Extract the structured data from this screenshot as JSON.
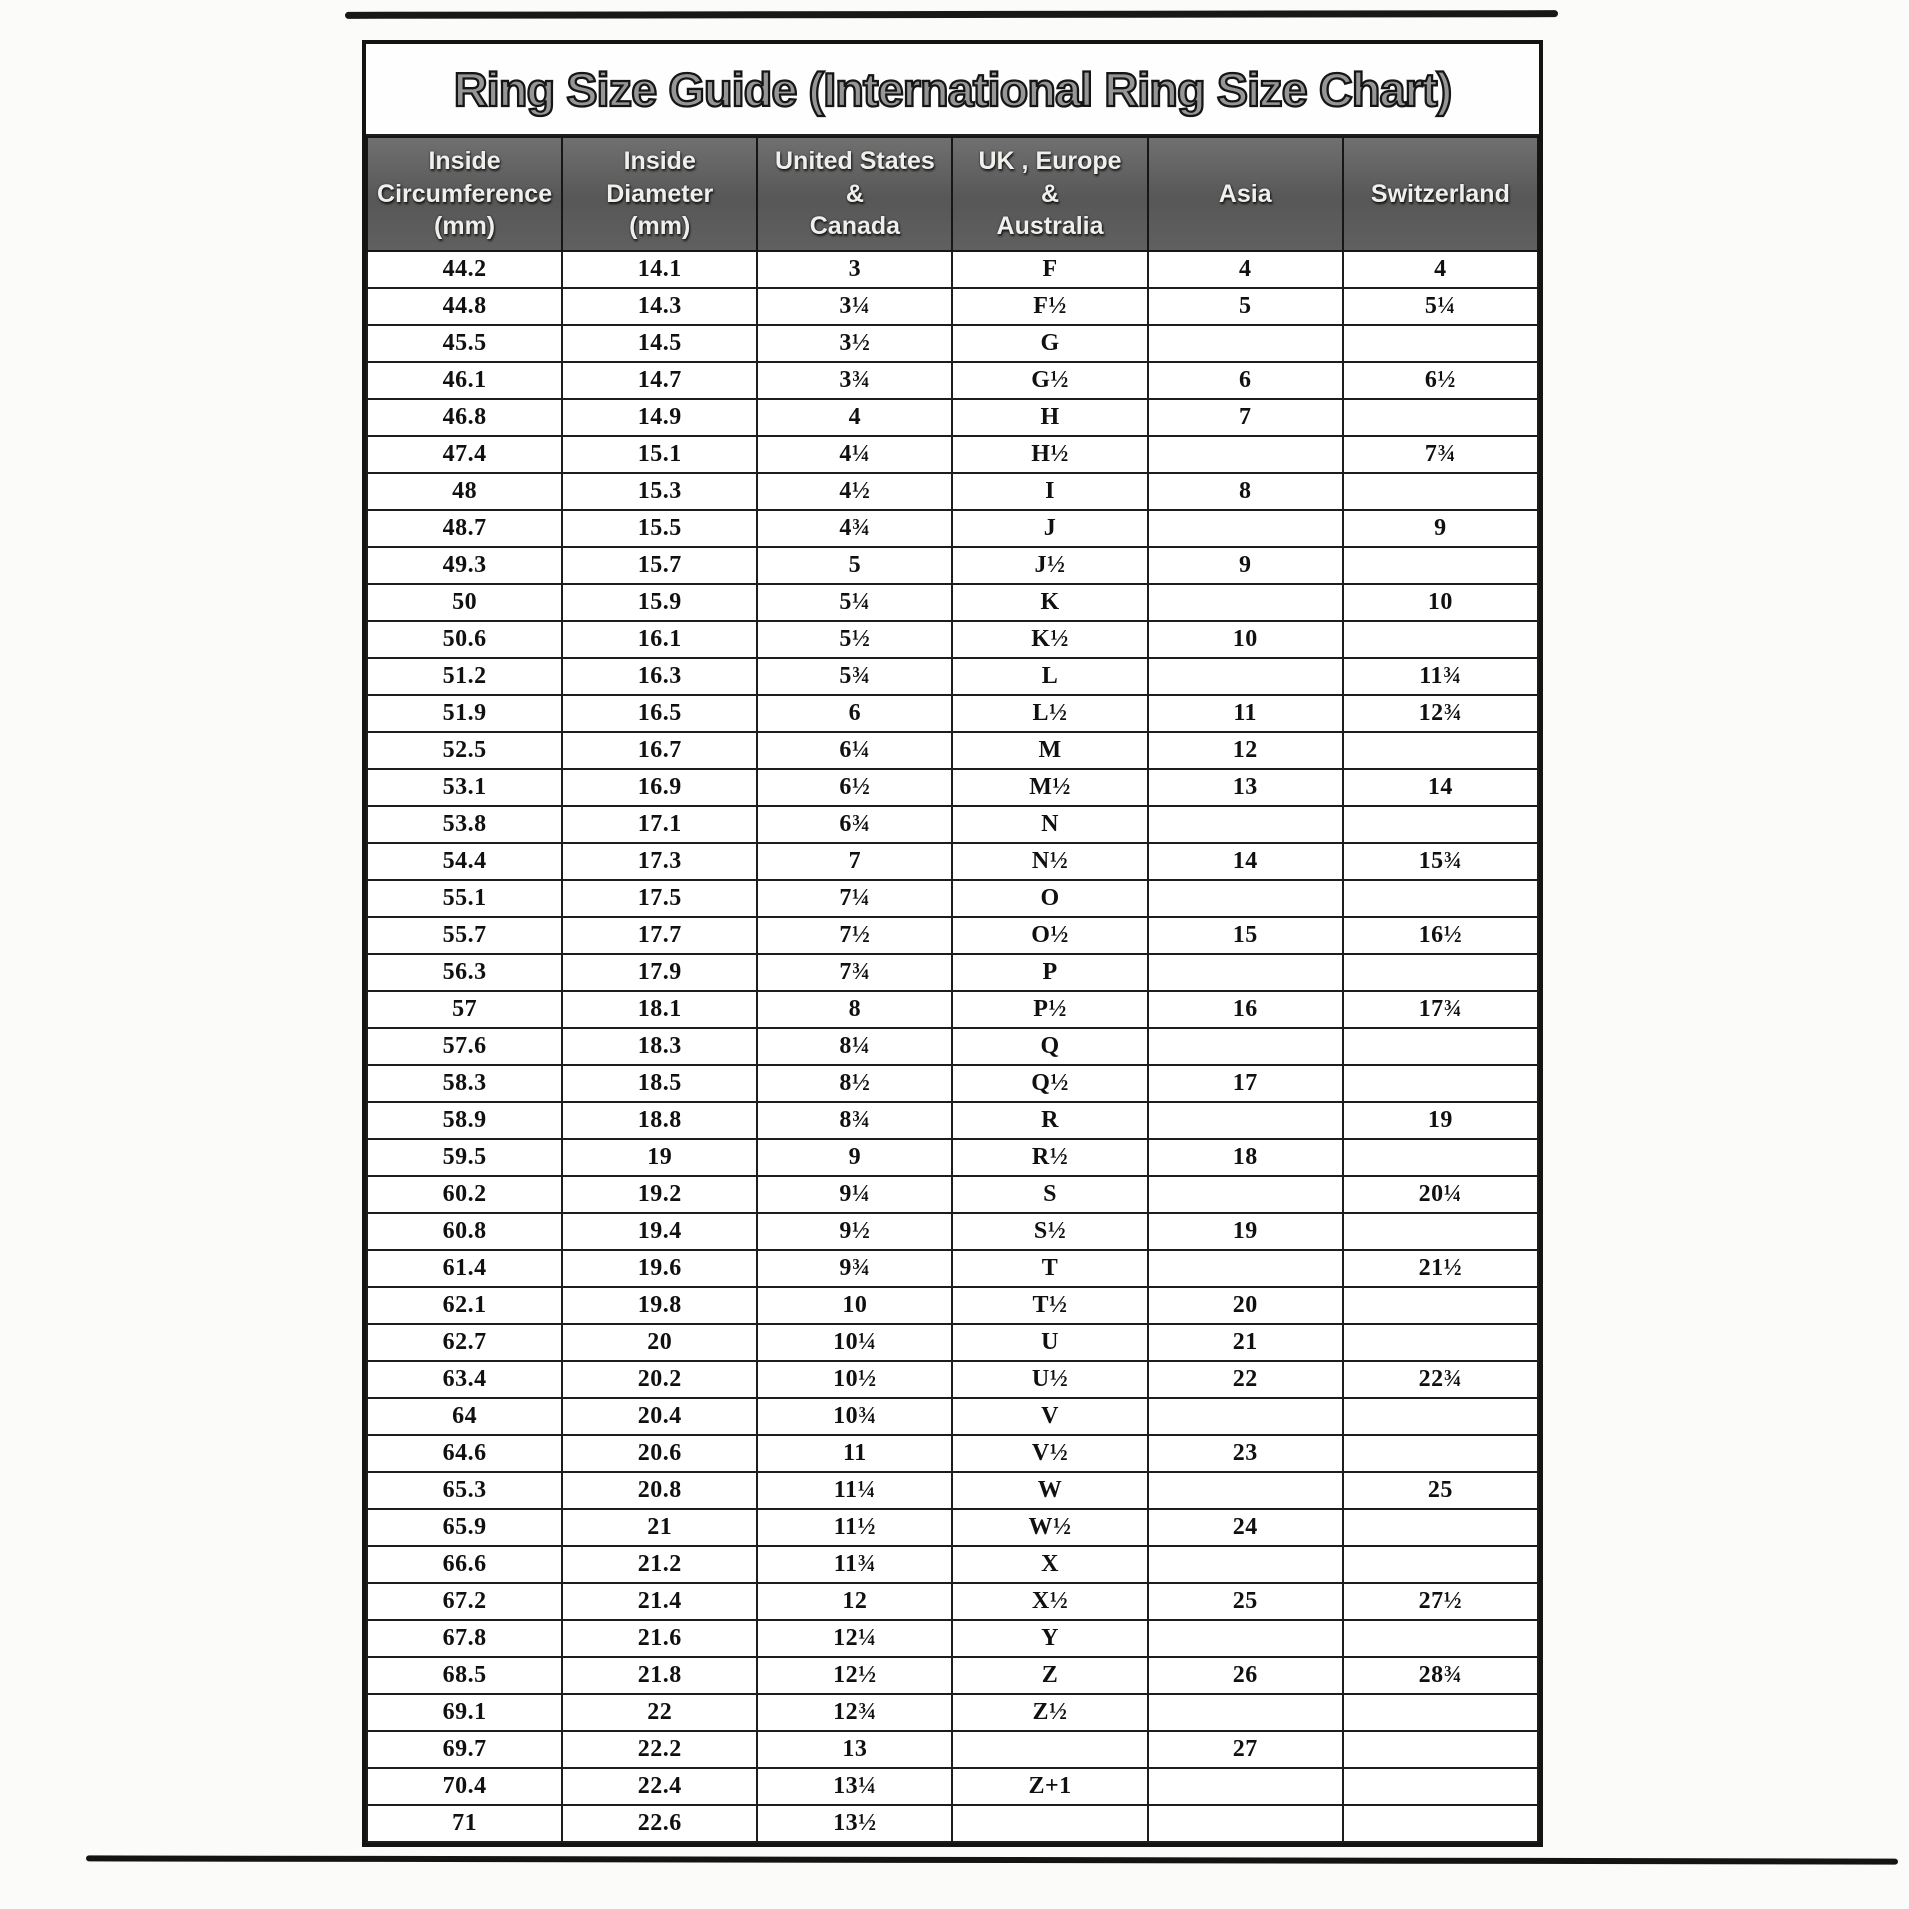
{
  "title": "Ring Size Guide (International Ring Size Chart)",
  "colors": {
    "header_background": "#5d5d5d",
    "header_text": "#f0efec",
    "border": "#1a1a1a",
    "paper": "#ffffff"
  },
  "header": {
    "columns": [
      {
        "id": "circumference-mm",
        "lines": [
          "Inside",
          "Circumference",
          "(mm)"
        ]
      },
      {
        "id": "diameter-mm",
        "lines": [
          "Inside",
          "Diameter",
          "(mm)"
        ]
      },
      {
        "id": "us-canada",
        "lines": [
          "United States",
          "&",
          "Canada"
        ]
      },
      {
        "id": "uk-europe-australia",
        "lines": [
          "UK , Europe",
          "&",
          "Australia"
        ]
      },
      {
        "id": "asia",
        "lines": [
          "",
          "Asia",
          ""
        ]
      },
      {
        "id": "switzerland",
        "lines": [
          "",
          "Switzerland",
          ""
        ]
      }
    ]
  },
  "table": {
    "rows": [
      [
        "44.2",
        "14.1",
        "3",
        "F",
        "4",
        "4"
      ],
      [
        "44.8",
        "14.3",
        "3¼",
        "F½",
        "5",
        "5¼"
      ],
      [
        "45.5",
        "14.5",
        "3½",
        "G",
        "",
        ""
      ],
      [
        "46.1",
        "14.7",
        "3¾",
        "G½",
        "6",
        "6½"
      ],
      [
        "46.8",
        "14.9",
        "4",
        "H",
        "7",
        ""
      ],
      [
        "47.4",
        "15.1",
        "4¼",
        "H½",
        "",
        "7¾"
      ],
      [
        "48",
        "15.3",
        "4½",
        "I",
        "8",
        ""
      ],
      [
        "48.7",
        "15.5",
        "4¾",
        "J",
        "",
        "9"
      ],
      [
        "49.3",
        "15.7",
        "5",
        "J½",
        "9",
        ""
      ],
      [
        "50",
        "15.9",
        "5¼",
        "K",
        "",
        "10"
      ],
      [
        "50.6",
        "16.1",
        "5½",
        "K½",
        "10",
        ""
      ],
      [
        "51.2",
        "16.3",
        "5¾",
        "L",
        "",
        "11¾"
      ],
      [
        "51.9",
        "16.5",
        "6",
        "L½",
        "11",
        "12¾"
      ],
      [
        "52.5",
        "16.7",
        "6¼",
        "M",
        "12",
        ""
      ],
      [
        "53.1",
        "16.9",
        "6½",
        "M½",
        "13",
        "14"
      ],
      [
        "53.8",
        "17.1",
        "6¾",
        "N",
        "",
        ""
      ],
      [
        "54.4",
        "17.3",
        "7",
        "N½",
        "14",
        "15¾"
      ],
      [
        "55.1",
        "17.5",
        "7¼",
        "O",
        "",
        ""
      ],
      [
        "55.7",
        "17.7",
        "7½",
        "O½",
        "15",
        "16½"
      ],
      [
        "56.3",
        "17.9",
        "7¾",
        "P",
        "",
        ""
      ],
      [
        "57",
        "18.1",
        "8",
        "P½",
        "16",
        "17¾"
      ],
      [
        "57.6",
        "18.3",
        "8¼",
        "Q",
        "",
        ""
      ],
      [
        "58.3",
        "18.5",
        "8½",
        "Q½",
        "17",
        ""
      ],
      [
        "58.9",
        "18.8",
        "8¾",
        "R",
        "",
        "19"
      ],
      [
        "59.5",
        "19",
        "9",
        "R½",
        "18",
        ""
      ],
      [
        "60.2",
        "19.2",
        "9¼",
        "S",
        "",
        "20¼"
      ],
      [
        "60.8",
        "19.4",
        "9½",
        "S½",
        "19",
        ""
      ],
      [
        "61.4",
        "19.6",
        "9¾",
        "T",
        "",
        "21½"
      ],
      [
        "62.1",
        "19.8",
        "10",
        "T½",
        "20",
        ""
      ],
      [
        "62.7",
        "20",
        "10¼",
        "U",
        "21",
        ""
      ],
      [
        "63.4",
        "20.2",
        "10½",
        "U½",
        "22",
        "22¾"
      ],
      [
        "64",
        "20.4",
        "10¾",
        "V",
        "",
        ""
      ],
      [
        "64.6",
        "20.6",
        "11",
        "V½",
        "23",
        ""
      ],
      [
        "65.3",
        "20.8",
        "11¼",
        "W",
        "",
        "25"
      ],
      [
        "65.9",
        "21",
        "11½",
        "W½",
        "24",
        ""
      ],
      [
        "66.6",
        "21.2",
        "11¾",
        "X",
        "",
        ""
      ],
      [
        "67.2",
        "21.4",
        "12",
        "X½",
        "25",
        "27½"
      ],
      [
        "67.8",
        "21.6",
        "12¼",
        "Y",
        "",
        ""
      ],
      [
        "68.5",
        "21.8",
        "12½",
        "Z",
        "26",
        "28¾"
      ],
      [
        "69.1",
        "22",
        "12¾",
        "Z½",
        "",
        ""
      ],
      [
        "69.7",
        "22.2",
        "13",
        "",
        "27",
        ""
      ],
      [
        "70.4",
        "22.4",
        "13¼",
        "Z+1",
        "",
        ""
      ],
      [
        "71",
        "22.6",
        "13½",
        "",
        "",
        ""
      ]
    ]
  }
}
